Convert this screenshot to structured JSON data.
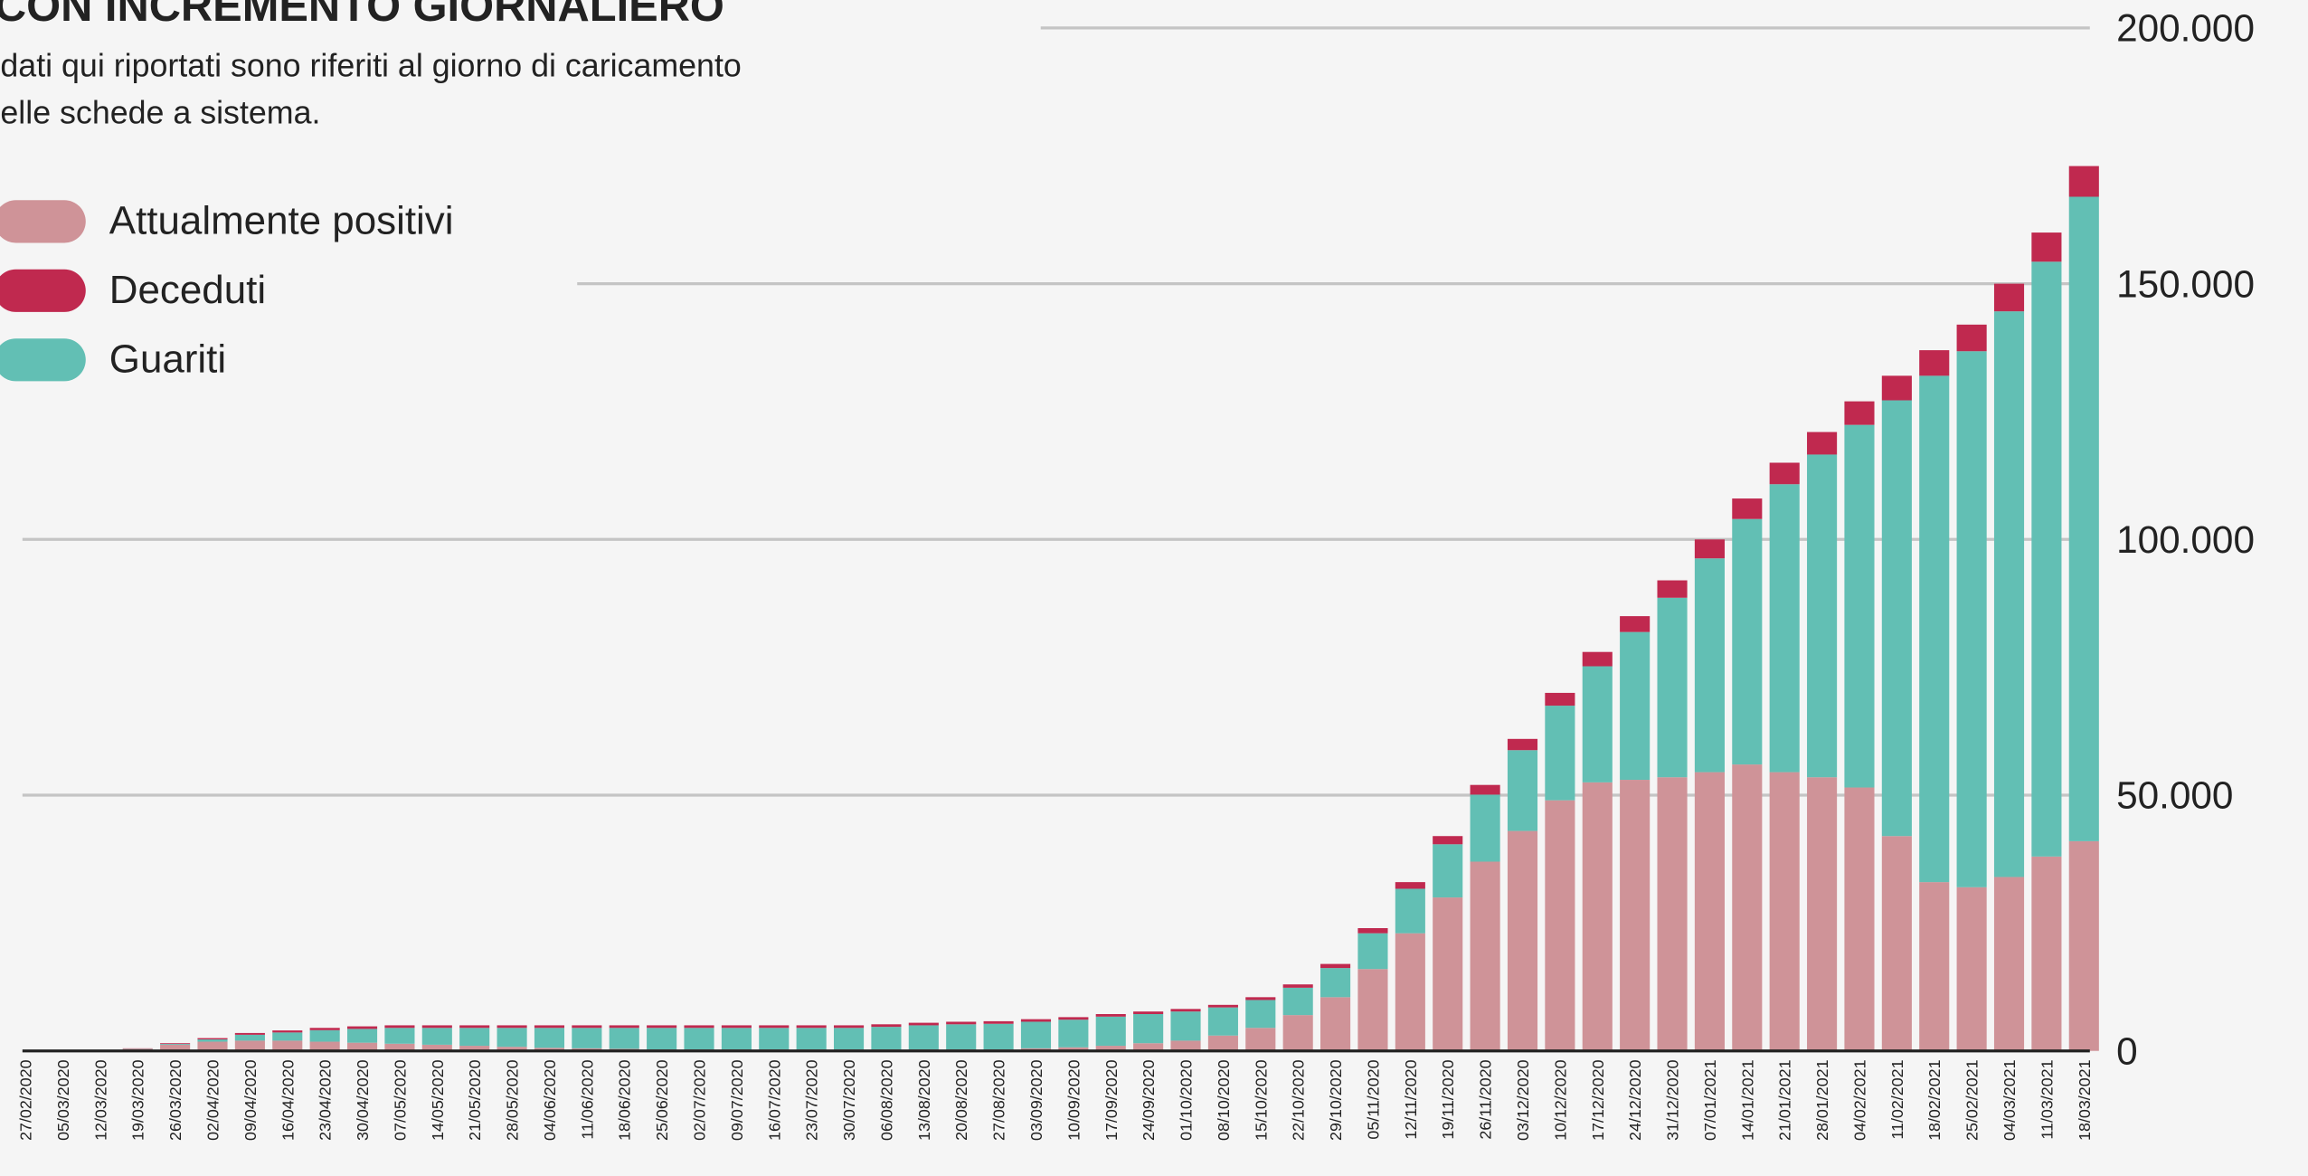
{
  "chart_data": {
    "type": "stacked_bar",
    "title": "CON INCREMENTO GIORNALIERO",
    "subtitle": [
      "dati qui riportati sono riferiti al giorno di caricamento",
      "elle schede a sistema."
    ],
    "categories": [
      "27/02/2020",
      "05/03/2020",
      "12/03/2020",
      "19/03/2020",
      "26/03/2020",
      "02/04/2020",
      "09/04/2020",
      "16/04/2020",
      "23/04/2020",
      "30/04/2020",
      "07/05/2020",
      "14/05/2020",
      "21/05/2020",
      "28/05/2020",
      "04/06/2020",
      "11/06/2020",
      "18/06/2020",
      "25/06/2020",
      "02/07/2020",
      "09/07/2020",
      "16/07/2020",
      "23/07/2020",
      "30/07/2020",
      "06/08/2020",
      "13/08/2020",
      "20/08/2020",
      "27/08/2020",
      "03/09/2020",
      "10/09/2020",
      "17/09/2020",
      "24/09/2020",
      "01/10/2020",
      "08/10/2020",
      "15/10/2020",
      "22/10/2020",
      "29/10/2020",
      "05/11/2020",
      "12/11/2020",
      "19/11/2020",
      "26/11/2020",
      "03/12/2020",
      "10/12/2020",
      "17/12/2020",
      "24/12/2020",
      "31/12/2020",
      "07/01/2021",
      "14/01/2021",
      "21/01/2021",
      "28/01/2021",
      "04/02/2021",
      "11/02/2021",
      "18/02/2021",
      "25/02/2021",
      "04/03/2021",
      "11/03/2021",
      "18/03/2021"
    ],
    "series": [
      {
        "name": "Attualmente positivi",
        "color": "#cf9398",
        "values": [
          0,
          0,
          0,
          400,
          1200,
          1800,
          2000,
          2000,
          1800,
          1600,
          1400,
          1200,
          1000,
          800,
          600,
          500,
          400,
          300,
          300,
          300,
          300,
          300,
          300,
          300,
          300,
          300,
          300,
          500,
          700,
          1000,
          1500,
          2000,
          3000,
          4500,
          7000,
          10500,
          16000,
          23000,
          30000,
          37000,
          43000,
          49000,
          52500,
          53000,
          53500,
          54500,
          56000,
          54500,
          53500,
          51500,
          42000,
          33000,
          32000,
          34000,
          38000,
          41000
        ]
      },
      {
        "name": "Deceduti",
        "color": "#c0294f",
        "values": [
          0,
          0,
          0,
          50,
          150,
          250,
          350,
          400,
          450,
          500,
          500,
          500,
          500,
          500,
          500,
          500,
          500,
          500,
          500,
          500,
          500,
          500,
          500,
          500,
          500,
          500,
          500,
          500,
          500,
          500,
          500,
          500,
          500,
          550,
          650,
          800,
          1000,
          1300,
          1600,
          1900,
          2200,
          2500,
          2800,
          3100,
          3400,
          3700,
          4000,
          4200,
          4400,
          4600,
          4800,
          5000,
          5200,
          5400,
          5700,
          6000
        ]
      },
      {
        "name": "Guariti",
        "color": "#62bfb4",
        "values": [
          0,
          0,
          0,
          50,
          150,
          450,
          1150,
          1600,
          2250,
          2700,
          3100,
          3300,
          3500,
          3700,
          3900,
          4000,
          4100,
          4200,
          4200,
          4200,
          4200,
          4200,
          4200,
          4400,
          4700,
          4900,
          5000,
          5200,
          5400,
          5700,
          5700,
          5700,
          5500,
          5450,
          5350,
          5700,
          7000,
          8700,
          10400,
          13100,
          15800,
          18500,
          22700,
          28900,
          35100,
          41800,
          48000,
          56300,
          63100,
          70900,
          85200,
          99000,
          104800,
          110600,
          116300,
          126000
        ]
      }
    ],
    "ylim": [
      0,
      200000
    ],
    "yticks": [
      0,
      {
        "value": 50000,
        "label": "50.000"
      },
      {
        "value": 100000,
        "label": "100.000"
      },
      {
        "value": 150000,
        "label": "150.000"
      },
      {
        "value": 200000,
        "label": "200.000"
      }
    ],
    "grid": true
  }
}
